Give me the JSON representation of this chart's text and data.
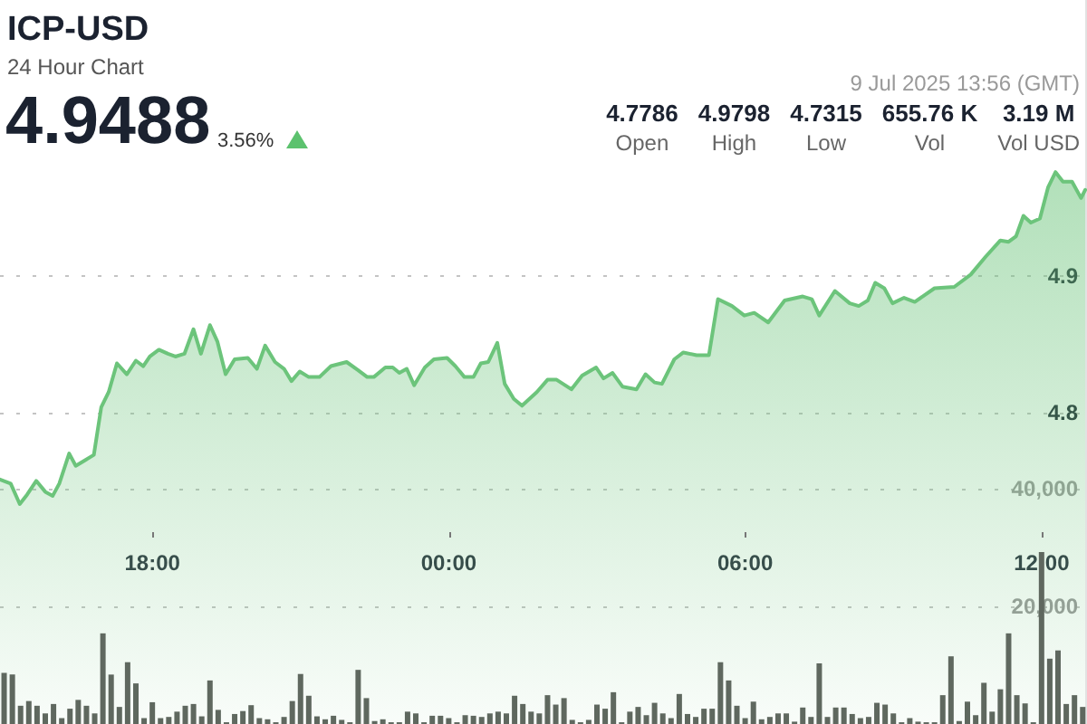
{
  "chart_data": {
    "type": "area",
    "title": "ICP-USD",
    "subtitle": "24 Hour Chart",
    "annotations": [
      "4.9488",
      "3.56%",
      "9 Jul 2025 13:56 (GMT)",
      "4.7786",
      "Open",
      "4.9798",
      "High",
      "4.7315",
      "Low",
      "655.76 K",
      "Vol",
      "3.19 M",
      "Vol USD"
    ],
    "xlim": [
      "2025-07-08T14:55",
      "2025-07-09T12:53"
    ],
    "xticks": [
      {
        "value": "2025-07-08T18:00",
        "label": "18:00"
      },
      {
        "value": "2025-07-09T00:00",
        "label": "00:00"
      },
      {
        "value": "2025-07-09T06:00",
        "label": "06:00"
      },
      {
        "value": "2025-07-09T12:00",
        "label": "12:00"
      }
    ],
    "ylim": [
      4.572,
      5.102
    ],
    "yticks": [
      4.8,
      4.9
    ],
    "y2lim": [
      0,
      123000
    ],
    "y2ticks": [
      {
        "value": 20000,
        "label": "20,000"
      },
      {
        "value": 40000,
        "label": "40,000"
      }
    ],
    "grid": "y",
    "marker": "none",
    "series": [
      {
        "color": "#6cc47b",
        "x": [
          "2025-07-08T14:55",
          "2025-07-08T15:08",
          "2025-07-08T15:19",
          "2025-07-08T15:28",
          "2025-07-08T15:39",
          "2025-07-08T15:50",
          "2025-07-08T15:59",
          "2025-07-08T16:07",
          "2025-07-08T16:19",
          "2025-07-08T16:27",
          "2025-07-08T16:38",
          "2025-07-08T16:49",
          "2025-07-08T16:58",
          "2025-07-08T17:07",
          "2025-07-08T17:17",
          "2025-07-08T17:29",
          "2025-07-08T17:40",
          "2025-07-08T17:49",
          "2025-07-08T17:57",
          "2025-07-08T18:08",
          "2025-07-08T18:19",
          "2025-07-08T18:28",
          "2025-07-08T18:39",
          "2025-07-08T18:50",
          "2025-07-08T18:59",
          "2025-07-08T19:10",
          "2025-07-08T19:19",
          "2025-07-08T19:29",
          "2025-07-08T19:40",
          "2025-07-08T19:56",
          "2025-07-08T20:07",
          "2025-07-08T20:17",
          "2025-07-08T20:29",
          "2025-07-08T20:40",
          "2025-07-08T20:49",
          "2025-07-08T20:59",
          "2025-07-08T21:10",
          "2025-07-08T21:23",
          "2025-07-08T21:37",
          "2025-07-08T21:56",
          "2025-07-08T22:10",
          "2025-07-08T22:21",
          "2025-07-08T22:29",
          "2025-07-08T22:43",
          "2025-07-08T22:52",
          "2025-07-08T23:00",
          "2025-07-08T23:09",
          "2025-07-08T23:18",
          "2025-07-08T23:31",
          "2025-07-08T23:42",
          "2025-07-08T23:58",
          "2025-07-09T00:08",
          "2025-07-09T00:19",
          "2025-07-09T00:30",
          "2025-07-09T00:39",
          "2025-07-09T00:48",
          "2025-07-09T00:59",
          "2025-07-09T01:08",
          "2025-07-09T01:19",
          "2025-07-09T01:29",
          "2025-07-09T01:38",
          "2025-07-09T01:47",
          "2025-07-09T02:00",
          "2025-07-09T02:11",
          "2025-07-09T02:29",
          "2025-07-09T02:42",
          "2025-07-09T02:59",
          "2025-07-09T03:08",
          "2025-07-09T03:19",
          "2025-07-09T03:31",
          "2025-07-09T03:48",
          "2025-07-09T03:59",
          "2025-07-09T04:10",
          "2025-07-09T04:19",
          "2025-07-09T04:34",
          "2025-07-09T04:45",
          "2025-07-09T05:01",
          "2025-07-09T05:16",
          "2025-07-09T05:27",
          "2025-07-09T05:44",
          "2025-07-09T05:59",
          "2025-07-09T06:11",
          "2025-07-09T06:28",
          "2025-07-09T06:48",
          "2025-07-09T07:10",
          "2025-07-09T07:21",
          "2025-07-09T07:30",
          "2025-07-09T07:49",
          "2025-07-09T08:07",
          "2025-07-09T08:18",
          "2025-07-09T08:29",
          "2025-07-09T08:38",
          "2025-07-09T08:49",
          "2025-07-09T08:59",
          "2025-07-09T09:13",
          "2025-07-09T09:26",
          "2025-07-09T09:50",
          "2025-07-09T10:14",
          "2025-07-09T10:34",
          "2025-07-09T10:52",
          "2025-07-09T11:10",
          "2025-07-09T11:20",
          "2025-07-09T11:29",
          "2025-07-09T11:38",
          "2025-07-09T11:47",
          "2025-07-09T11:58",
          "2025-07-09T12:08",
          "2025-07-09T12:17",
          "2025-07-09T12:26",
          "2025-07-09T12:37",
          "2025-07-09T12:48",
          "2025-07-09T12:53"
        ],
        "values": [
          4.751,
          4.748,
          4.733,
          4.74,
          4.75,
          4.742,
          4.739,
          4.748,
          4.77,
          4.761,
          4.765,
          4.769,
          4.804,
          4.815,
          4.836,
          4.828,
          4.838,
          4.834,
          4.841,
          4.846,
          4.843,
          4.841,
          4.843,
          4.861,
          4.843,
          4.864,
          4.852,
          4.828,
          4.839,
          4.84,
          4.832,
          4.849,
          4.837,
          4.832,
          4.823,
          4.83,
          4.826,
          4.826,
          4.834,
          4.837,
          4.831,
          4.826,
          4.826,
          4.833,
          4.833,
          4.829,
          4.832,
          4.82,
          4.833,
          4.839,
          4.84,
          4.834,
          4.826,
          4.826,
          4.836,
          4.837,
          4.851,
          4.821,
          4.81,
          4.805,
          4.81,
          4.815,
          4.824,
          4.824,
          4.817,
          4.827,
          4.833,
          4.825,
          4.829,
          4.819,
          4.817,
          4.828,
          4.822,
          4.821,
          4.839,
          4.844,
          4.842,
          4.842,
          4.883,
          4.878,
          4.871,
          4.873,
          4.866,
          4.882,
          4.885,
          4.883,
          4.871,
          4.889,
          4.88,
          4.878,
          4.882,
          4.895,
          4.891,
          4.88,
          4.884,
          4.881,
          4.891,
          4.892,
          4.901,
          4.914,
          4.926,
          4.925,
          4.929,
          4.944,
          4.939,
          4.942,
          4.965,
          4.976,
          4.969,
          4.969,
          4.957,
          4.963
        ]
      },
      {
        "type": "bar",
        "axis": "y2",
        "color": "#5f685f",
        "x": [
          "2025-07-08T15:00",
          "2025-07-08T15:10",
          "2025-07-08T15:20",
          "2025-07-08T15:30",
          "2025-07-08T15:40",
          "2025-07-08T15:50",
          "2025-07-08T16:00",
          "2025-07-08T16:10",
          "2025-07-08T16:20",
          "2025-07-08T16:30",
          "2025-07-08T16:40",
          "2025-07-08T16:50",
          "2025-07-08T17:00",
          "2025-07-08T17:10",
          "2025-07-08T17:20",
          "2025-07-08T17:30",
          "2025-07-08T17:40",
          "2025-07-08T17:50",
          "2025-07-08T18:00",
          "2025-07-08T18:10",
          "2025-07-08T18:20",
          "2025-07-08T18:30",
          "2025-07-08T18:40",
          "2025-07-08T18:50",
          "2025-07-08T19:00",
          "2025-07-08T19:10",
          "2025-07-08T19:20",
          "2025-07-08T19:30",
          "2025-07-08T19:40",
          "2025-07-08T19:50",
          "2025-07-08T20:00",
          "2025-07-08T20:10",
          "2025-07-08T20:20",
          "2025-07-08T20:30",
          "2025-07-08T20:40",
          "2025-07-08T20:50",
          "2025-07-08T21:00",
          "2025-07-08T21:10",
          "2025-07-08T21:20",
          "2025-07-08T21:30",
          "2025-07-08T21:40",
          "2025-07-08T21:50",
          "2025-07-08T22:00",
          "2025-07-08T22:10",
          "2025-07-08T22:20",
          "2025-07-08T22:30",
          "2025-07-08T22:40",
          "2025-07-08T22:50",
          "2025-07-08T23:00",
          "2025-07-08T23:10",
          "2025-07-08T23:20",
          "2025-07-08T23:30",
          "2025-07-08T23:40",
          "2025-07-08T23:50",
          "2025-07-09T00:00",
          "2025-07-09T00:10",
          "2025-07-09T00:20",
          "2025-07-09T00:30",
          "2025-07-09T00:40",
          "2025-07-09T00:50",
          "2025-07-09T01:00",
          "2025-07-09T01:10",
          "2025-07-09T01:20",
          "2025-07-09T01:30",
          "2025-07-09T01:40",
          "2025-07-09T01:50",
          "2025-07-09T02:00",
          "2025-07-09T02:10",
          "2025-07-09T02:20",
          "2025-07-09T02:30",
          "2025-07-09T02:40",
          "2025-07-09T02:50",
          "2025-07-09T03:00",
          "2025-07-09T03:10",
          "2025-07-09T03:20",
          "2025-07-09T03:30",
          "2025-07-09T03:40",
          "2025-07-09T03:50",
          "2025-07-09T04:00",
          "2025-07-09T04:10",
          "2025-07-09T04:20",
          "2025-07-09T04:30",
          "2025-07-09T04:40",
          "2025-07-09T04:50",
          "2025-07-09T05:00",
          "2025-07-09T05:10",
          "2025-07-09T05:20",
          "2025-07-09T05:30",
          "2025-07-09T05:40",
          "2025-07-09T05:50",
          "2025-07-09T06:00",
          "2025-07-09T06:10",
          "2025-07-09T06:20",
          "2025-07-09T06:30",
          "2025-07-09T06:40",
          "2025-07-09T06:50",
          "2025-07-09T07:00",
          "2025-07-09T07:10",
          "2025-07-09T07:20",
          "2025-07-09T07:30",
          "2025-07-09T07:40",
          "2025-07-09T07:50",
          "2025-07-09T08:00",
          "2025-07-09T08:10",
          "2025-07-09T08:20",
          "2025-07-09T08:30",
          "2025-07-09T08:40",
          "2025-07-09T08:50",
          "2025-07-09T09:00",
          "2025-07-09T09:10",
          "2025-07-09T09:20",
          "2025-07-09T09:30",
          "2025-07-09T09:40",
          "2025-07-09T09:50",
          "2025-07-09T10:00",
          "2025-07-09T10:10",
          "2025-07-09T10:20",
          "2025-07-09T10:30",
          "2025-07-09T10:40",
          "2025-07-09T10:50",
          "2025-07-09T11:00",
          "2025-07-09T11:10",
          "2025-07-09T11:20",
          "2025-07-09T11:30",
          "2025-07-09T11:40",
          "2025-07-09T11:50",
          "2025-07-09T12:00",
          "2025-07-09T12:10",
          "2025-07-09T12:20",
          "2025-07-09T12:30",
          "2025-07-09T12:40",
          "2025-07-09T12:50"
        ],
        "values": [
          8700,
          8400,
          3100,
          3900,
          3100,
          1800,
          3400,
          1000,
          2600,
          4100,
          3100,
          1800,
          15400,
          8400,
          2900,
          10500,
          6900,
          1000,
          3700,
          1000,
          1200,
          2100,
          3100,
          3400,
          1300,
          7400,
          2400,
          300,
          1700,
          2200,
          3200,
          1000,
          800,
          300,
          1200,
          3900,
          8500,
          4800,
          1300,
          800,
          1400,
          700,
          300,
          9200,
          4400,
          500,
          800,
          300,
          300,
          2100,
          1800,
          300,
          1400,
          1400,
          1000,
          300,
          1500,
          1400,
          1200,
          1800,
          2100,
          1800,
          4800,
          3400,
          2100,
          1800,
          4900,
          3300,
          4400,
          700,
          300,
          700,
          3300,
          2600,
          5400,
          300,
          2100,
          2900,
          1500,
          3600,
          1800,
          1000,
          5100,
          1700,
          1200,
          2600,
          2600,
          10500,
          7400,
          3100,
          1000,
          3800,
          800,
          1200,
          1800,
          1800,
          400,
          2800,
          1200,
          10300,
          1200,
          2800,
          2800,
          1700,
          1000,
          1200,
          3600,
          3300,
          1800,
          300,
          1000,
          400,
          300,
          300,
          4900,
          11500,
          500,
          3800,
          1500,
          7000,
          2100,
          5900,
          15400,
          4900,
          3500,
          300,
          29200,
          11100,
          12500,
          3400,
          4900,
          2900
        ]
      }
    ]
  }
}
